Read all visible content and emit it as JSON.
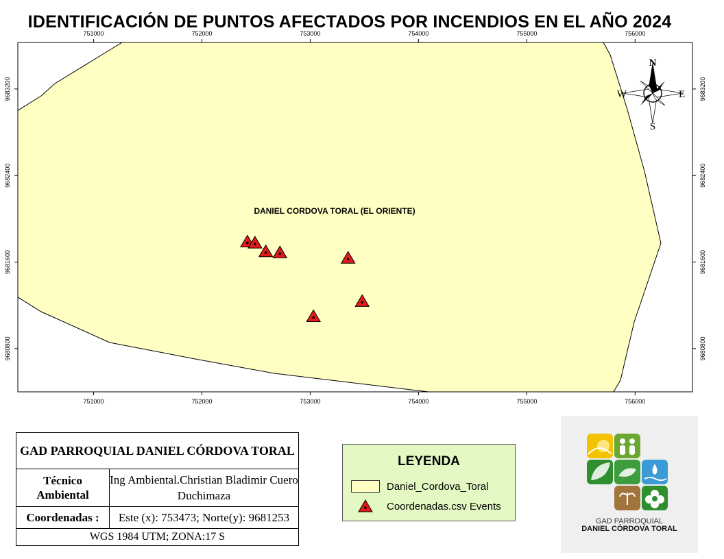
{
  "title": "IDENTIFICACIÓN DE PUNTOS AFECTADOS POR INCENDIOS EN EL AÑO 2024",
  "map": {
    "area_label": "DANIEL CORDOVA TORAL (EL ORIENTE)",
    "area_fill": "#ffffc4",
    "x_ticks": [
      "751000",
      "752000",
      "753000",
      "754000",
      "755000",
      "756000"
    ],
    "y_ticks": [
      "9683200",
      "9682400",
      "9681600",
      "9680800"
    ],
    "extent": {
      "x_min": 750300,
      "x_max": 756530,
      "y_min": 9680400,
      "y_max": 9683630
    },
    "points": [
      {
        "x": 752420,
        "y": 9681790
      },
      {
        "x": 752490,
        "y": 9681780
      },
      {
        "x": 752590,
        "y": 9681700
      },
      {
        "x": 752720,
        "y": 9681690
      },
      {
        "x": 753350,
        "y": 9681640
      },
      {
        "x": 753480,
        "y": 9681240
      },
      {
        "x": 753030,
        "y": 9681100
      }
    ],
    "point_color": "#e31a1c"
  },
  "compass": {
    "n": "N",
    "s": "S",
    "e": "E",
    "w": "W"
  },
  "info": {
    "header": "GAD PARROQUIAL DANIEL CÓRDOVA TORAL",
    "tech_label": "Técnico Ambiental",
    "tech_value": "Ing Ambiental.Christian Bladimir Cuero Duchimaza",
    "coord_label": "Coordenadas :",
    "coord_value": "Este (x): 753473; Norte(y): 9681253",
    "datum": "WGS 1984 UTM; ZONA:17 S"
  },
  "legend": {
    "title": "LEYENDA",
    "polygon_label": "Daniel_Cordova_Toral",
    "points_label": "Coordenadas.csv Events"
  },
  "logo": {
    "line1": "GAD PARROQUIAL",
    "line2": "DANIEL CÓRDOVA TORAL",
    "colors": [
      "#f3c300",
      "#6aa832",
      "#2f8f2f",
      "#3a9bd6",
      "#a0743a",
      "#3d9c3d"
    ]
  }
}
